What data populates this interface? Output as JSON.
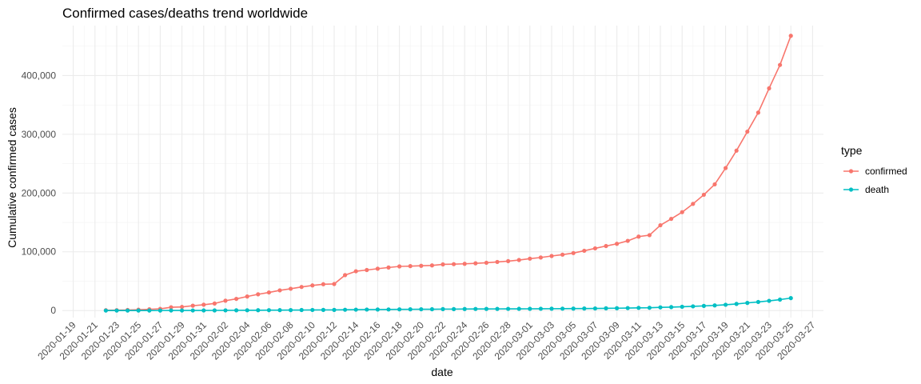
{
  "chart_data": {
    "type": "line",
    "title": "Confirmed cases/deaths trend worldwide",
    "xlabel": "date",
    "ylabel": "Cumulative confirmed cases",
    "legend_title": "type",
    "legend_position": "right",
    "grid": true,
    "x_ticks": [
      "2020-01-19",
      "2020-01-21",
      "2020-01-23",
      "2020-01-25",
      "2020-01-27",
      "2020-01-29",
      "2020-01-31",
      "2020-02-02",
      "2020-02-04",
      "2020-02-06",
      "2020-02-08",
      "2020-02-10",
      "2020-02-12",
      "2020-02-14",
      "2020-02-16",
      "2020-02-18",
      "2020-02-20",
      "2020-02-22",
      "2020-02-24",
      "2020-02-26",
      "2020-02-28",
      "2020-03-01",
      "2020-03-03",
      "2020-03-05",
      "2020-03-07",
      "2020-03-09",
      "2020-03-11",
      "2020-03-13",
      "2020-03-15",
      "2020-03-17",
      "2020-03-19",
      "2020-03-21",
      "2020-03-23",
      "2020-03-25",
      "2020-03-27"
    ],
    "y_ticks": [
      0,
      100000,
      200000,
      300000,
      400000
    ],
    "y_tick_labels": [
      "0",
      "100,000",
      "200,000",
      "300,000",
      "400,000"
    ],
    "xlim": [
      "2020-01-18",
      "2020-03-28"
    ],
    "ylim": [
      -12000,
      485000
    ],
    "x_start": "2020-01-22",
    "series": [
      {
        "name": "confirmed",
        "color": "#F8766D",
        "values": [
          555,
          654,
          941,
          1434,
          2118,
          2927,
          5578,
          6166,
          8234,
          9927,
          12038,
          16787,
          19881,
          23892,
          27635,
          30794,
          34391,
          37120,
          40150,
          42762,
          44802,
          45221,
          60368,
          66885,
          69030,
          71224,
          73258,
          75136,
          75639,
          76197,
          76819,
          78572,
          78958,
          79561,
          80406,
          81388,
          82746,
          84112,
          86011,
          88369,
          90306,
          92840,
          95120,
          97886,
          101801,
          105847,
          109821,
          113590,
          118620,
          125875,
          128352,
          145205,
          156101,
          167454,
          181574,
          197102,
          214821,
          242570,
          272208,
          304507,
          336953,
          378235,
          418045,
          467653
        ]
      },
      {
        "name": "death",
        "color": "#00BFC4",
        "values": [
          17,
          18,
          26,
          42,
          56,
          82,
          131,
          133,
          171,
          213,
          259,
          362,
          426,
          492,
          564,
          634,
          719,
          806,
          906,
          1013,
          1113,
          1118,
          1371,
          1523,
          1666,
          1770,
          1868,
          2007,
          2122,
          2247,
          2251,
          2458,
          2469,
          2629,
          2708,
          2770,
          2814,
          2872,
          2941,
          2996,
          3085,
          3160,
          3254,
          3348,
          3460,
          3558,
          3802,
          3988,
          4262,
          4615,
          4720,
          5404,
          5819,
          6440,
          7126,
          7905,
          8733,
          9867,
          11299,
          13015,
          14623,
          16497,
          18615,
          21181
        ]
      }
    ]
  }
}
